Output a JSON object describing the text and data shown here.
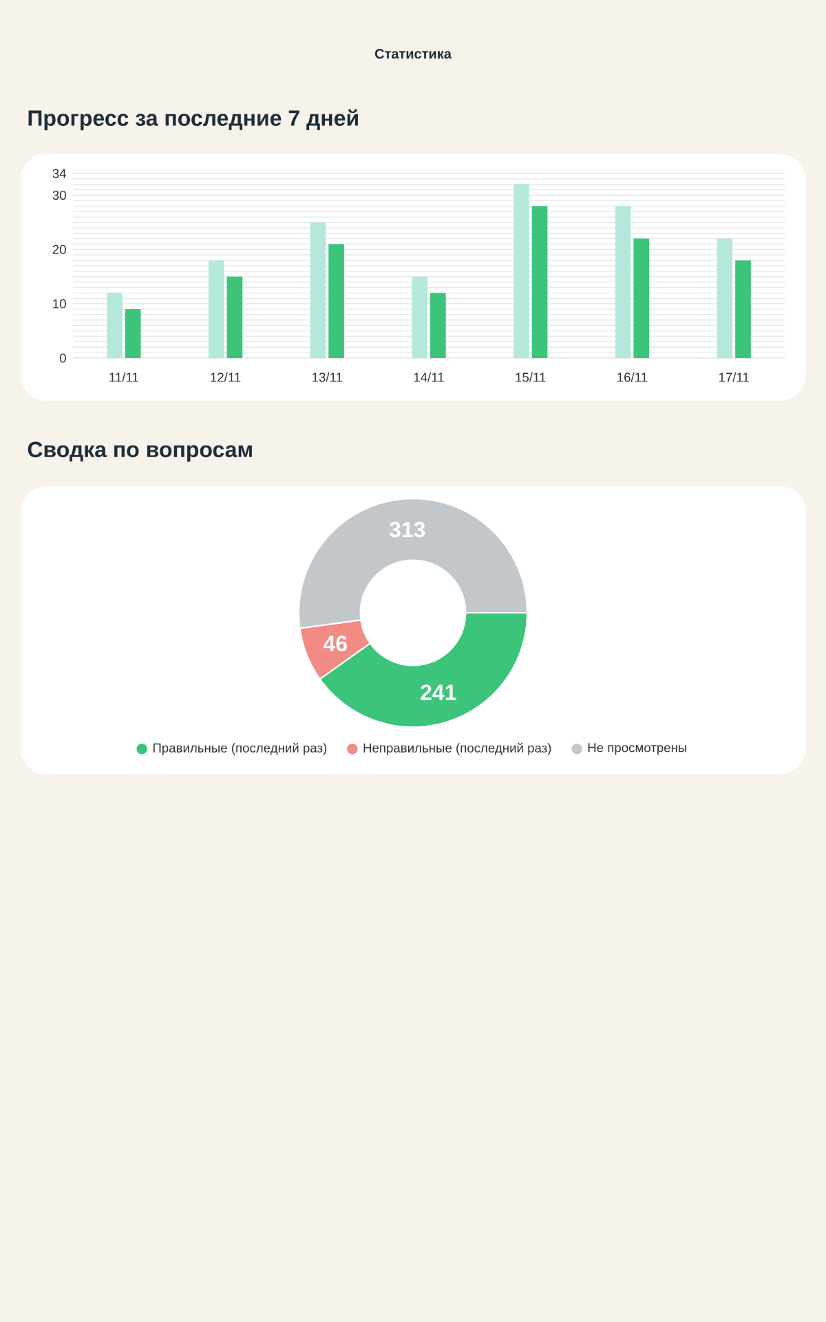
{
  "chart_data": [
    {
      "type": "bar",
      "title": "Прогресс за последние 7 дней",
      "annotations": [
        "Статистика"
      ],
      "categories": [
        "11/11",
        "12/11",
        "13/11",
        "14/11",
        "15/11",
        "16/11",
        "17/11"
      ],
      "series": [
        {
          "color": "#b5e8dd",
          "values": [
            12,
            18,
            25,
            15,
            32,
            28,
            22
          ]
        },
        {
          "color": "#3cc47a",
          "values": [
            9,
            15,
            21,
            12,
            28,
            22,
            18
          ]
        }
      ],
      "ylim": [
        0,
        34
      ],
      "yticks": [
        0,
        10,
        20,
        30,
        34
      ],
      "grid": "y"
    },
    {
      "type": "donut",
      "title": "Сводка по вопросам",
      "categories": [
        "Правильные (последний раз)",
        "Неправильные (последний раз)",
        "Не просмотрены"
      ],
      "values": [
        241,
        46,
        313
      ],
      "colors": [
        "#3cc47a",
        "#f28b84",
        "#c2c7cb"
      ],
      "data_labels": true,
      "legend": "bottom"
    }
  ]
}
